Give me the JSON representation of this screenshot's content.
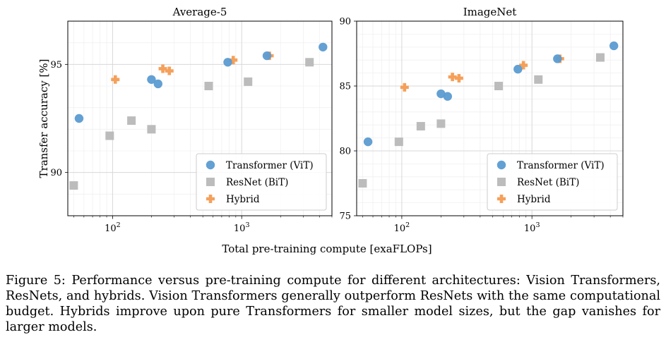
{
  "chart_data": [
    {
      "type": "scatter",
      "title": "Average-5",
      "ylabel": "Transfer accuracy [%]",
      "xscale": "log",
      "xlim": [
        45,
        5000
      ],
      "ylim": [
        88,
        97
      ],
      "y_ticks": [
        90,
        95
      ],
      "x_ticks": [
        100,
        1000
      ],
      "x_tick_labels": [
        {
          "base": "10",
          "exp": "2"
        },
        {
          "base": "10",
          "exp": "3"
        }
      ],
      "grid": true,
      "legend_position": "bottom-right",
      "series": [
        {
          "name": "Transformer (ViT)",
          "marker": "circle",
          "color": "#5b9bd1",
          "x": [
            55,
            200,
            225,
            780,
            1570,
            4260
          ],
          "y": [
            92.5,
            94.3,
            94.1,
            95.1,
            95.4,
            95.8
          ]
        },
        {
          "name": "ResNet (BiT)",
          "marker": "square",
          "color": "#bcbcbc",
          "x": [
            50,
            95,
            140,
            200,
            555,
            1120,
            3350
          ],
          "y": [
            89.4,
            91.7,
            92.4,
            92.0,
            94.0,
            94.2,
            95.1
          ]
        },
        {
          "name": "Hybrid",
          "marker": "plus",
          "color": "#f5a05a",
          "x": [
            105,
            245,
            275,
            860,
            1640
          ],
          "y": [
            94.3,
            94.8,
            94.7,
            95.2,
            95.4
          ]
        }
      ]
    },
    {
      "type": "scatter",
      "title": "ImageNet",
      "ylabel": "",
      "xscale": "log",
      "xlim": [
        45,
        5000
      ],
      "ylim": [
        75,
        90
      ],
      "y_ticks": [
        75,
        80,
        85,
        90
      ],
      "x_ticks": [
        100,
        1000
      ],
      "x_tick_labels": [
        {
          "base": "10",
          "exp": "2"
        },
        {
          "base": "10",
          "exp": "3"
        }
      ],
      "grid": true,
      "legend_position": "bottom-right",
      "series": [
        {
          "name": "Transformer (ViT)",
          "marker": "circle",
          "color": "#5b9bd1",
          "x": [
            55,
            200,
            225,
            780,
            1570,
            4260
          ],
          "y": [
            80.7,
            84.4,
            84.2,
            86.3,
            87.1,
            88.1
          ]
        },
        {
          "name": "ResNet (BiT)",
          "marker": "square",
          "color": "#bcbcbc",
          "x": [
            50,
            95,
            140,
            200,
            555,
            1120,
            3350
          ],
          "y": [
            77.5,
            80.7,
            81.9,
            82.1,
            85.0,
            85.5,
            87.2
          ]
        },
        {
          "name": "Hybrid",
          "marker": "plus",
          "color": "#f5a05a",
          "x": [
            105,
            245,
            275,
            860,
            1640
          ],
          "y": [
            84.9,
            85.7,
            85.6,
            86.6,
            87.1
          ]
        }
      ]
    }
  ],
  "figure": {
    "xlabel": "Total pre-training compute [exaFLOPs]",
    "caption": "Figure 5: Performance versus pre-training compute for different architectures: Vision Transformers, ResNets, and hybrids. Vision Transformers generally outperform ResNets with the same computational budget. Hybrids improve upon pure Transformers for smaller model sizes, but the gap vanishes for larger models."
  }
}
